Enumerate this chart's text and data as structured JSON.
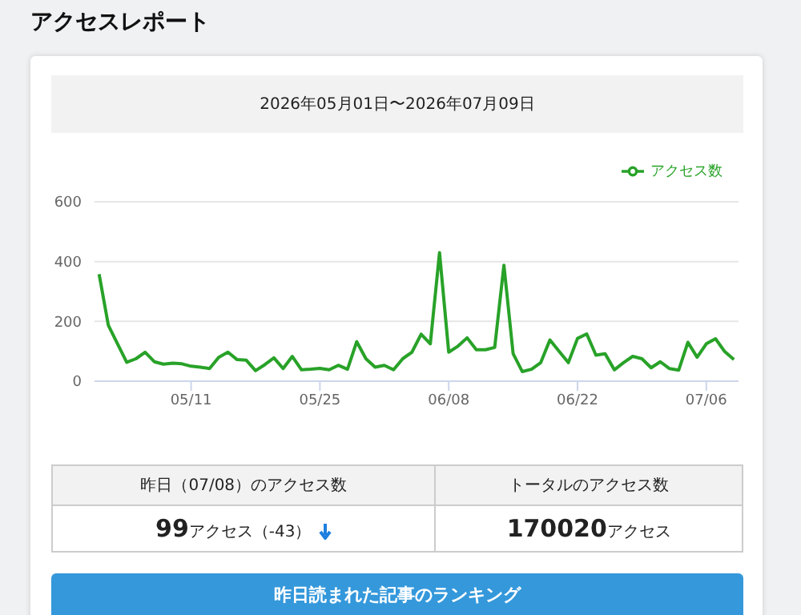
{
  "chart_data": {
    "type": "line",
    "title": "アクセスレポート",
    "subtitle": "2026年05月01日〜2026年07月09日",
    "x": [
      "2026-05-01",
      "2026-05-02",
      "2026-05-03",
      "2026-05-04",
      "2026-05-05",
      "2026-05-06",
      "2026-05-07",
      "2026-05-08",
      "2026-05-09",
      "2026-05-10",
      "2026-05-11",
      "2026-05-12",
      "2026-05-13",
      "2026-05-14",
      "2026-05-15",
      "2026-05-16",
      "2026-05-17",
      "2026-05-18",
      "2026-05-19",
      "2026-05-20",
      "2026-05-21",
      "2026-05-22",
      "2026-05-23",
      "2026-05-24",
      "2026-05-25",
      "2026-05-26",
      "2026-05-27",
      "2026-05-28",
      "2026-05-29",
      "2026-05-30",
      "2026-05-31",
      "2026-06-01",
      "2026-06-02",
      "2026-06-03",
      "2026-06-04",
      "2026-06-05",
      "2026-06-06",
      "2026-06-07",
      "2026-06-08",
      "2026-06-09",
      "2026-06-10",
      "2026-06-11",
      "2026-06-12",
      "2026-06-13",
      "2026-06-14",
      "2026-06-15",
      "2026-06-16",
      "2026-06-17",
      "2026-06-18",
      "2026-06-19",
      "2026-06-20",
      "2026-06-21",
      "2026-06-22",
      "2026-06-23",
      "2026-06-24",
      "2026-06-25",
      "2026-06-26",
      "2026-06-27",
      "2026-06-28",
      "2026-06-29",
      "2026-06-30",
      "2026-07-01",
      "2026-07-02",
      "2026-07-03",
      "2026-07-04",
      "2026-07-05",
      "2026-07-06",
      "2026-07-07",
      "2026-07-08",
      "2026-07-09"
    ],
    "series": [
      {
        "name": "アクセス数",
        "color": "#28a228",
        "values": [
          358,
          187,
          125,
          63,
          75,
          97,
          65,
          57,
          60,
          58,
          50,
          47,
          42,
          80,
          97,
          72,
          70,
          35,
          55,
          78,
          42,
          83,
          38,
          40,
          43,
          38,
          53,
          40,
          132,
          75,
          47,
          53,
          38,
          75,
          97,
          157,
          125,
          430,
          97,
          117,
          145,
          105,
          105,
          113,
          388,
          92,
          32,
          40,
          62,
          138,
          100,
          62,
          143,
          158,
          87,
          92,
          38,
          62,
          83,
          75,
          45,
          65,
          42,
          37,
          130,
          80,
          125,
          142,
          99,
          72
        ]
      }
    ],
    "xlim": [
      "2026-04-30T12:00",
      "2026-07-09T12:00"
    ],
    "xticks": [
      {
        "value": "2026-05-11",
        "label": "05/11"
      },
      {
        "value": "2026-05-25",
        "label": "05/25"
      },
      {
        "value": "2026-06-08",
        "label": "06/08"
      },
      {
        "value": "2026-06-22",
        "label": "06/22"
      },
      {
        "value": "2026-07-06",
        "label": "07/06"
      }
    ],
    "ylim": [
      0,
      600
    ],
    "yticks": [
      0,
      200,
      400,
      600
    ],
    "grid": "y",
    "legend": "top right",
    "annotations": [
      "昨日（07/08）のアクセス数",
      "トータルのアクセス数",
      "99",
      "アクセス（-43）",
      "170020",
      "アクセス",
      "昨日読まれた記事のランキング"
    ]
  }
}
